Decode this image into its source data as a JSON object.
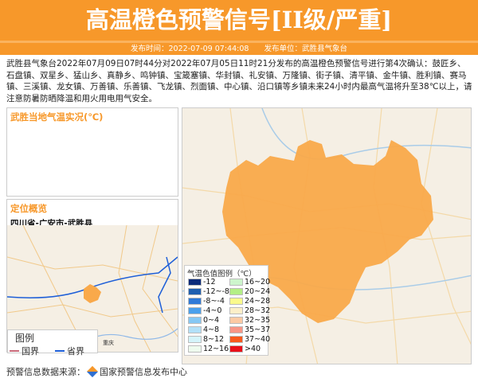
{
  "header": {
    "title": "高温橙色预警信号[II级/严重]",
    "publish_time_label": "发布时间：2022-07-09 07:44:08",
    "publish_unit_label": "发布单位：武胜县气象台"
  },
  "description": "武胜县气象台2022年07月09日07时44分对2022年07月05日11时21分发布的高温橙色预警信号进行第4次确认：鼓匠乡、石盘镇、双星乡、猛山乡、真静乡、鸣钟镇、宝箴塞镇、华封镇、礼安镇、万隆镇、街子镇、清平镇、金牛镇、胜利镇、赛马镇、三溪镇、龙女镇、万善镇、乐善镇、飞龙镇、烈面镇、中心镇、沿口镇等乡镇未来24小时内最高气温将升至38℃以上，请注意防暑防晒降温和用火用电用气安全。",
  "panels": {
    "temp_title": "武胜当地气温实况(℃)",
    "location_title": "定位概览",
    "location_path": "四川省-广安市-武胜县"
  },
  "map_legend": {
    "title": "图例",
    "country": "国界",
    "province": "省界",
    "country_color": "#c96a7a",
    "province_color": "#1e5fd8",
    "city": "重庆"
  },
  "temp_legend": {
    "title": "气温色值图例（℃）",
    "items": [
      {
        "label": "-12",
        "color": "#0a2a7a"
      },
      {
        "label": "-12~-8",
        "color": "#1f5fb0"
      },
      {
        "label": "-8~-4",
        "color": "#2f7ad8"
      },
      {
        "label": "-4~0",
        "color": "#4aa0ec"
      },
      {
        "label": "0~4",
        "color": "#86c8f4"
      },
      {
        "label": "4~8",
        "color": "#b2e0f8"
      },
      {
        "label": "8~12",
        "color": "#d4f4fa"
      },
      {
        "label": "12~16",
        "color": "#eefbee"
      },
      {
        "label": "16~20",
        "color": "#cdf5cc"
      },
      {
        "label": "20~24",
        "color": "#b4ef86"
      },
      {
        "label": "24~28",
        "color": "#fafa8c"
      },
      {
        "label": "28~32",
        "color": "#fcefc8"
      },
      {
        "label": "32~35",
        "color": "#fccaa4"
      },
      {
        "label": "35~37",
        "color": "#f89686"
      },
      {
        "label": "37~40",
        "color": "#f85a1e"
      },
      {
        "label": ">40",
        "color": "#e8101a"
      }
    ]
  },
  "warning_area_color": "#f9a94a",
  "footer": {
    "label": "预警信息数据来源：",
    "source": "国家预警信息发布中心"
  }
}
